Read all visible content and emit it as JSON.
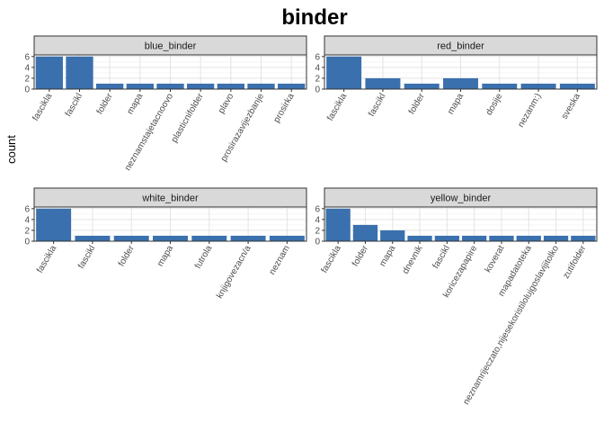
{
  "chart_data": {
    "type": "bar",
    "title": "binder",
    "ylabel": "count",
    "xlabel": "",
    "ylim": [
      0,
      6.3
    ],
    "yticks": [
      0,
      2,
      4,
      6
    ],
    "bar_color": "#3a70ad",
    "strip_color": "#d9d9d9",
    "grid": true,
    "panels": [
      {
        "name": "blue_binder",
        "categories": [
          "fascikla",
          "fascikl",
          "folder",
          "mapa",
          "neznamstajetacnoovo",
          "plasticnifolder",
          "plavo",
          "prosirazavijezbanje",
          "prosirka"
        ],
        "values": [
          6,
          6,
          1,
          1,
          1,
          1,
          1,
          1,
          1
        ]
      },
      {
        "name": "red_binder",
        "categories": [
          "fascikla",
          "fascikl",
          "folder",
          "mapa",
          "dosije",
          "nezanm:)",
          "sveska"
        ],
        "values": [
          6,
          2,
          1,
          2,
          1,
          1,
          1
        ]
      },
      {
        "name": "white_binder",
        "categories": [
          "fascikla",
          "fascikl",
          "folder",
          "mapa",
          "futrola",
          "knjigovezacn/a",
          "neznam"
        ],
        "values": [
          6,
          1,
          1,
          1,
          1,
          1,
          1
        ]
      },
      {
        "name": "yellow_binder",
        "categories": [
          "fascikla",
          "folder",
          "mapa",
          "dnevnik",
          "fascikl",
          "koricezapapire",
          "koverat",
          "mapadatoteka",
          "neznamrijeczato,nijesekoristilolujgoslavijitolko",
          "zutifolder"
        ],
        "values": [
          6,
          3,
          2,
          1,
          1,
          1,
          1,
          1,
          1,
          1
        ]
      }
    ]
  }
}
